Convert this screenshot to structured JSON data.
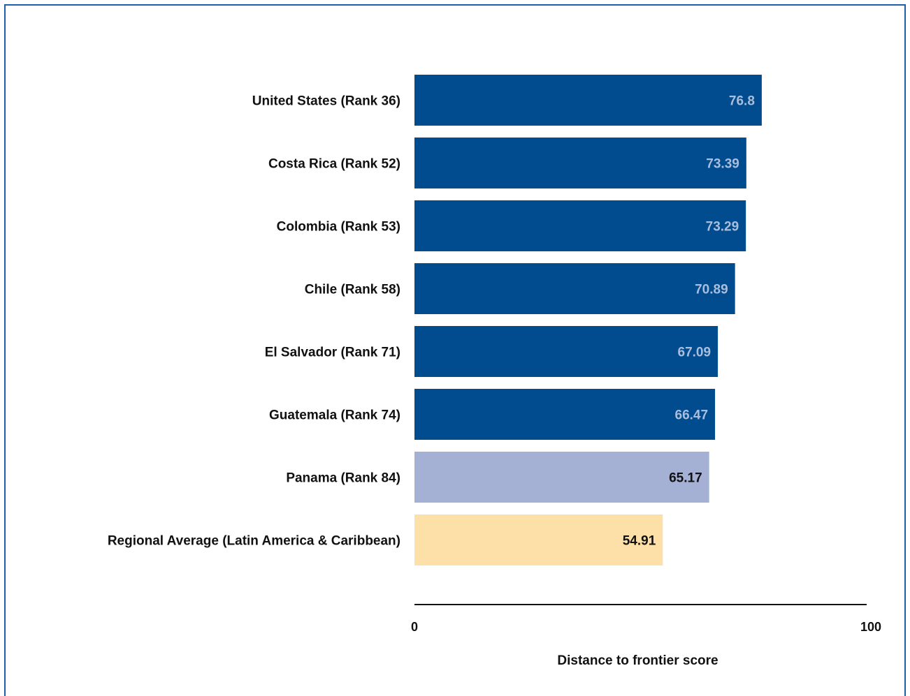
{
  "chart_data": {
    "type": "bar",
    "orientation": "horizontal",
    "categories": [
      "United States (Rank 36)",
      "Costa Rica (Rank 52)",
      "Colombia (Rank 53)",
      "Chile (Rank 58)",
      "El Salvador (Rank 71)",
      "Guatemala (Rank 74)",
      "Panama (Rank 84)",
      "Regional Average (Latin America & Caribbean)"
    ],
    "values": [
      76.8,
      73.39,
      73.29,
      70.89,
      67.09,
      66.47,
      65.17,
      54.91
    ],
    "value_labels": [
      "76.8",
      "73.39",
      "73.29",
      "70.89",
      "67.09",
      "66.47",
      "65.17",
      "54.91"
    ],
    "bar_colors": [
      "#004c8f",
      "#004c8f",
      "#004c8f",
      "#004c8f",
      "#004c8f",
      "#004c8f",
      "#a4b0d4",
      "#fde0a8"
    ],
    "label_colors": [
      "#a9bedc",
      "#a9bedc",
      "#a9bedc",
      "#a9bedc",
      "#a9bedc",
      "#a9bedc",
      "#111111",
      "#111111"
    ],
    "xlabel": "Distance to frontier score",
    "xlim": [
      0,
      100
    ],
    "xticks": [
      "0",
      "100"
    ],
    "grid": false
  },
  "colors": {
    "frame": "#1f5fa6",
    "axis": "#111111"
  }
}
